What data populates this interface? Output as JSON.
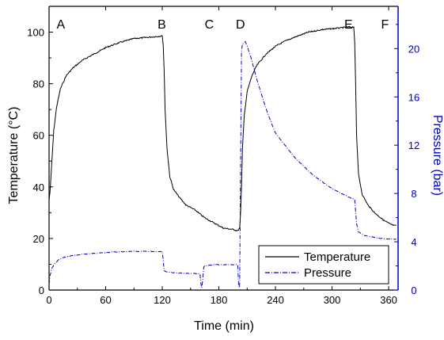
{
  "chart_data": {
    "type": "line",
    "xlabel": "Time (min)",
    "ylabel_left": "Temperature (°C)",
    "ylabel_right": "Pressure (bar)",
    "xlim": [
      0,
      370
    ],
    "ylim_left": [
      0,
      110
    ],
    "ylim_right": [
      0,
      23.5
    ],
    "x_ticks": [
      0,
      60,
      120,
      180,
      240,
      300,
      360
    ],
    "y_left_ticks": [
      0,
      20,
      40,
      60,
      80,
      100
    ],
    "y_right_ticks": [
      0,
      4,
      8,
      12,
      16,
      20
    ],
    "phase_labels": [
      {
        "text": "A",
        "x": 8
      },
      {
        "text": "B",
        "x": 115
      },
      {
        "text": "C",
        "x": 165
      },
      {
        "text": "D",
        "x": 198
      },
      {
        "text": "E",
        "x": 313
      },
      {
        "text": "F",
        "x": 352
      }
    ],
    "legend": {
      "position": "bottom-right",
      "entries": [
        "Temperature",
        "Pressure"
      ]
    },
    "series": [
      {
        "name": "Temperature",
        "axis": "left",
        "color": "#000000",
        "style": "solid",
        "x": [
          0,
          1,
          3,
          5,
          8,
          12,
          18,
          25,
          35,
          45,
          60,
          75,
          90,
          105,
          120,
          121,
          122,
          123,
          125,
          128,
          132,
          138,
          145,
          155,
          165,
          175,
          185,
          195,
          200,
          202,
          203,
          204,
          205,
          207,
          210,
          215,
          220,
          230,
          240,
          250,
          260,
          275,
          290,
          305,
          318,
          323,
          324,
          325,
          326,
          328,
          332,
          338,
          345,
          355,
          362,
          366,
          368
        ],
        "values": [
          35,
          38,
          50,
          62,
          71,
          78,
          83,
          86,
          89,
          91,
          94,
          96,
          97.5,
          98,
          98.5,
          95,
          85,
          70,
          55,
          44,
          39,
          36,
          33,
          31,
          28,
          26,
          24,
          23.5,
          23,
          24,
          30,
          40,
          55,
          68,
          77,
          83,
          87,
          91.5,
          94.5,
          96.5,
          98,
          100,
          101,
          101.5,
          102,
          102,
          96,
          80,
          60,
          45,
          37,
          33,
          30,
          27,
          25.5,
          25,
          25
        ]
      },
      {
        "name": "Pressure",
        "axis": "right",
        "color": "#0000c0",
        "style": "dash-dot",
        "x": [
          0,
          1,
          3,
          6,
          10,
          15,
          20,
          30,
          40,
          50,
          60,
          70,
          80,
          90,
          100,
          110,
          120,
          121,
          122,
          125,
          130,
          140,
          150,
          160,
          161,
          162,
          163,
          164,
          165,
          170,
          175,
          180,
          190,
          200,
          201,
          202,
          203,
          204,
          205,
          207,
          208,
          210,
          215,
          220,
          230,
          240,
          260,
          280,
          300,
          320,
          324,
          325,
          326,
          328,
          335,
          350,
          365,
          368
        ],
        "values": [
          0.5,
          1.2,
          1.8,
          2.2,
          2.5,
          2.7,
          2.8,
          2.9,
          3.0,
          3.05,
          3.1,
          3.15,
          3.18,
          3.2,
          3.2,
          3.2,
          3.2,
          2.5,
          1.6,
          1.5,
          1.45,
          1.4,
          1.38,
          1.35,
          0.5,
          0.2,
          1.0,
          1.9,
          2.0,
          2.05,
          2.1,
          2.1,
          2.1,
          2.1,
          0.3,
          0.2,
          10,
          19.8,
          20.4,
          20.5,
          20.6,
          20.2,
          19.0,
          17.5,
          15.0,
          13.0,
          11.0,
          9.5,
          8.4,
          7.6,
          7.5,
          6.5,
          5.5,
          4.8,
          4.5,
          4.3,
          4.2,
          4.2
        ]
      }
    ]
  }
}
